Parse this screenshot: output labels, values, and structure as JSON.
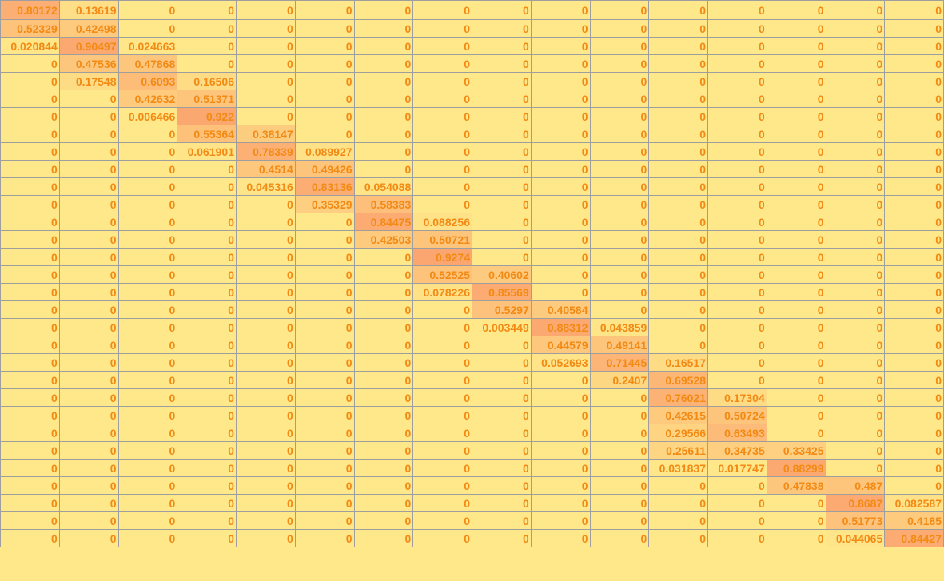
{
  "grid": {
    "rows": [
      [
        "0.80172",
        "0.13619",
        "0",
        "0",
        "0",
        "0",
        "0",
        "0",
        "0",
        "0",
        "0",
        "0",
        "0",
        "0",
        "0",
        "0"
      ],
      [
        "0.52329",
        "0.42498",
        "0",
        "0",
        "0",
        "0",
        "0",
        "0",
        "0",
        "0",
        "0",
        "0",
        "0",
        "0",
        "0",
        "0"
      ],
      [
        "0.020844",
        "0.90497",
        "0.024663",
        "0",
        "0",
        "0",
        "0",
        "0",
        "0",
        "0",
        "0",
        "0",
        "0",
        "0",
        "0",
        "0"
      ],
      [
        "0",
        "0.47536",
        "0.47868",
        "0",
        "0",
        "0",
        "0",
        "0",
        "0",
        "0",
        "0",
        "0",
        "0",
        "0",
        "0",
        "0"
      ],
      [
        "0",
        "0.17548",
        "0.6093",
        "0.16506",
        "0",
        "0",
        "0",
        "0",
        "0",
        "0",
        "0",
        "0",
        "0",
        "0",
        "0",
        "0"
      ],
      [
        "0",
        "0",
        "0.42632",
        "0.51371",
        "0",
        "0",
        "0",
        "0",
        "0",
        "0",
        "0",
        "0",
        "0",
        "0",
        "0",
        "0"
      ],
      [
        "0",
        "0",
        "0.006466",
        "0.922",
        "0",
        "0",
        "0",
        "0",
        "0",
        "0",
        "0",
        "0",
        "0",
        "0",
        "0",
        "0"
      ],
      [
        "0",
        "0",
        "0",
        "0.55364",
        "0.38147",
        "0",
        "0",
        "0",
        "0",
        "0",
        "0",
        "0",
        "0",
        "0",
        "0",
        "0"
      ],
      [
        "0",
        "0",
        "0",
        "0.061901",
        "0.78339",
        "0.089927",
        "0",
        "0",
        "0",
        "0",
        "0",
        "0",
        "0",
        "0",
        "0",
        "0"
      ],
      [
        "0",
        "0",
        "0",
        "0",
        "0.4514",
        "0.49426",
        "0",
        "0",
        "0",
        "0",
        "0",
        "0",
        "0",
        "0",
        "0",
        "0"
      ],
      [
        "0",
        "0",
        "0",
        "0",
        "0.045316",
        "0.83136",
        "0.054088",
        "0",
        "0",
        "0",
        "0",
        "0",
        "0",
        "0",
        "0",
        "0"
      ],
      [
        "0",
        "0",
        "0",
        "0",
        "0",
        "0.35329",
        "0.58383",
        "0",
        "0",
        "0",
        "0",
        "0",
        "0",
        "0",
        "0",
        "0"
      ],
      [
        "0",
        "0",
        "0",
        "0",
        "0",
        "0",
        "0.84475",
        "0.088256",
        "0",
        "0",
        "0",
        "0",
        "0",
        "0",
        "0",
        "0"
      ],
      [
        "0",
        "0",
        "0",
        "0",
        "0",
        "0",
        "0.42503",
        "0.50721",
        "0",
        "0",
        "0",
        "0",
        "0",
        "0",
        "0",
        "0"
      ],
      [
        "0",
        "0",
        "0",
        "0",
        "0",
        "0",
        "0",
        "0.9274",
        "0",
        "0",
        "0",
        "0",
        "0",
        "0",
        "0",
        "0"
      ],
      [
        "0",
        "0",
        "0",
        "0",
        "0",
        "0",
        "0",
        "0.52525",
        "0.40602",
        "0",
        "0",
        "0",
        "0",
        "0",
        "0",
        "0"
      ],
      [
        "0",
        "0",
        "0",
        "0",
        "0",
        "0",
        "0",
        "0.078226",
        "0.85569",
        "0",
        "0",
        "0",
        "0",
        "0",
        "0",
        "0"
      ],
      [
        "0",
        "0",
        "0",
        "0",
        "0",
        "0",
        "0",
        "0",
        "0.5297",
        "0.40584",
        "0",
        "0",
        "0",
        "0",
        "0",
        "0"
      ],
      [
        "0",
        "0",
        "0",
        "0",
        "0",
        "0",
        "0",
        "0",
        "0.003449",
        "0.88312",
        "0.043859",
        "0",
        "0",
        "0",
        "0",
        "0"
      ],
      [
        "0",
        "0",
        "0",
        "0",
        "0",
        "0",
        "0",
        "0",
        "0",
        "0.44579",
        "0.49141",
        "0",
        "0",
        "0",
        "0",
        "0"
      ],
      [
        "0",
        "0",
        "0",
        "0",
        "0",
        "0",
        "0",
        "0",
        "0",
        "0.052693",
        "0.71445",
        "0.16517",
        "0",
        "0",
        "0",
        "0"
      ],
      [
        "0",
        "0",
        "0",
        "0",
        "0",
        "0",
        "0",
        "0",
        "0",
        "0",
        "0.2407",
        "0.69528",
        "0",
        "0",
        "0",
        "0"
      ],
      [
        "0",
        "0",
        "0",
        "0",
        "0",
        "0",
        "0",
        "0",
        "0",
        "0",
        "0",
        "0.76021",
        "0.17304",
        "0",
        "0",
        "0"
      ],
      [
        "0",
        "0",
        "0",
        "0",
        "0",
        "0",
        "0",
        "0",
        "0",
        "0",
        "0",
        "0.42615",
        "0.50724",
        "0",
        "0",
        "0"
      ],
      [
        "0",
        "0",
        "0",
        "0",
        "0",
        "0",
        "0",
        "0",
        "0",
        "0",
        "0",
        "0.29566",
        "0.63493",
        "0",
        "0",
        "0"
      ],
      [
        "0",
        "0",
        "0",
        "0",
        "0",
        "0",
        "0",
        "0",
        "0",
        "0",
        "0",
        "0.25611",
        "0.34735",
        "0.33425",
        "0",
        "0"
      ],
      [
        "0",
        "0",
        "0",
        "0",
        "0",
        "0",
        "0",
        "0",
        "0",
        "0",
        "0",
        "0.031837",
        "0.017747",
        "0.88299",
        "0",
        "0"
      ],
      [
        "0",
        "0",
        "0",
        "0",
        "0",
        "0",
        "0",
        "0",
        "0",
        "0",
        "0",
        "0",
        "0",
        "0.47838",
        "0.487",
        "0"
      ],
      [
        "0",
        "0",
        "0",
        "0",
        "0",
        "0",
        "0",
        "0",
        "0",
        "0",
        "0",
        "0",
        "0",
        "0",
        "0.8687",
        "0.082587"
      ],
      [
        "0",
        "0",
        "0",
        "0",
        "0",
        "0",
        "0",
        "0",
        "0",
        "0",
        "0",
        "0",
        "0",
        "0",
        "0.51773",
        "0.4185"
      ],
      [
        "0",
        "0",
        "0",
        "0",
        "0",
        "0",
        "0",
        "0",
        "0",
        "0",
        "0",
        "0",
        "0",
        "0",
        "0.044065",
        "0.84427"
      ]
    ]
  },
  "colors": {
    "low": "#ffe88a",
    "high": "#fba16e",
    "text": "#f28a14",
    "gridline": "#9e9e9e"
  }
}
